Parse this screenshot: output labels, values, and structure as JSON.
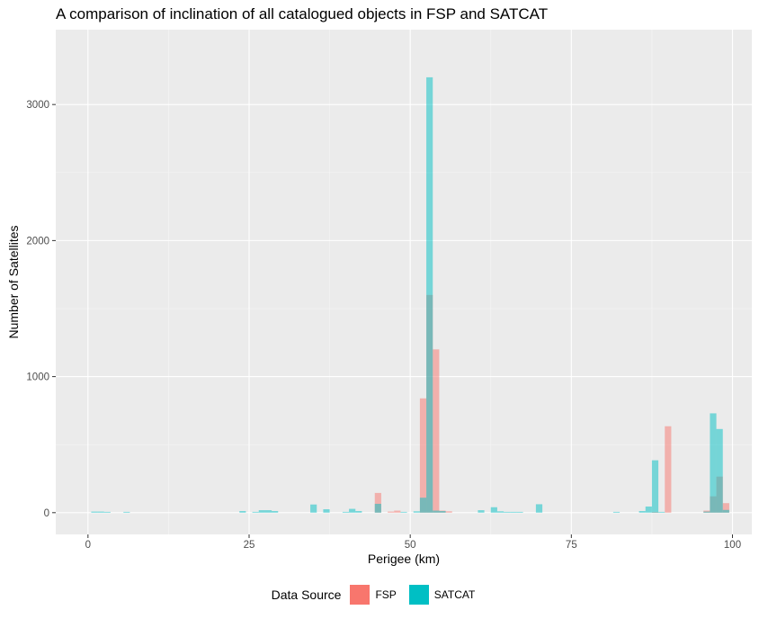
{
  "chart_data": {
    "type": "bar",
    "title": "A comparison of inclination of all catalogued objects in FSP and SATCAT",
    "xlabel": "Perigee (km)",
    "ylabel": "Number of Satellites",
    "xlim": [
      -5,
      103
    ],
    "ylim": [
      -160,
      3550
    ],
    "x_ticks": [
      0,
      25,
      50,
      75,
      100
    ],
    "y_ticks": [
      0,
      1000,
      2000,
      3000
    ],
    "bin_width": 1,
    "grid": true,
    "legend_position": "bottom",
    "legend_title": "Data Source",
    "series": [
      {
        "name": "FSP",
        "color": "#F8766D",
        "points": [
          {
            "x": 45,
            "y": 145
          },
          {
            "x": 47,
            "y": 8
          },
          {
            "x": 48,
            "y": 15
          },
          {
            "x": 52,
            "y": 840
          },
          {
            "x": 53,
            "y": 1600
          },
          {
            "x": 54,
            "y": 1200
          },
          {
            "x": 55,
            "y": 15
          },
          {
            "x": 56,
            "y": 10
          },
          {
            "x": 88,
            "y": 5
          },
          {
            "x": 90,
            "y": 635
          },
          {
            "x": 96,
            "y": 15
          },
          {
            "x": 97,
            "y": 120
          },
          {
            "x": 98,
            "y": 265
          },
          {
            "x": 99,
            "y": 70
          }
        ]
      },
      {
        "name": "SATCAT",
        "color": "#00BFC4",
        "points": [
          {
            "x": 1,
            "y": 8
          },
          {
            "x": 2,
            "y": 8
          },
          {
            "x": 3,
            "y": 6
          },
          {
            "x": 6,
            "y": 6
          },
          {
            "x": 24,
            "y": 12
          },
          {
            "x": 26,
            "y": 6
          },
          {
            "x": 27,
            "y": 18
          },
          {
            "x": 28,
            "y": 18
          },
          {
            "x": 29,
            "y": 12
          },
          {
            "x": 35,
            "y": 60
          },
          {
            "x": 37,
            "y": 25
          },
          {
            "x": 40,
            "y": 6
          },
          {
            "x": 41,
            "y": 28
          },
          {
            "x": 42,
            "y": 12
          },
          {
            "x": 45,
            "y": 65
          },
          {
            "x": 49,
            "y": 6
          },
          {
            "x": 51,
            "y": 10
          },
          {
            "x": 52,
            "y": 110
          },
          {
            "x": 53,
            "y": 3200
          },
          {
            "x": 54,
            "y": 15
          },
          {
            "x": 55,
            "y": 12
          },
          {
            "x": 61,
            "y": 18
          },
          {
            "x": 63,
            "y": 40
          },
          {
            "x": 64,
            "y": 10
          },
          {
            "x": 65,
            "y": 6
          },
          {
            "x": 66,
            "y": 6
          },
          {
            "x": 67,
            "y": 6
          },
          {
            "x": 70,
            "y": 62
          },
          {
            "x": 82,
            "y": 6
          },
          {
            "x": 86,
            "y": 12
          },
          {
            "x": 87,
            "y": 45
          },
          {
            "x": 88,
            "y": 385
          },
          {
            "x": 89,
            "y": 6
          },
          {
            "x": 96,
            "y": 8
          },
          {
            "x": 97,
            "y": 730
          },
          {
            "x": 98,
            "y": 615
          },
          {
            "x": 99,
            "y": 20
          }
        ]
      }
    ]
  }
}
